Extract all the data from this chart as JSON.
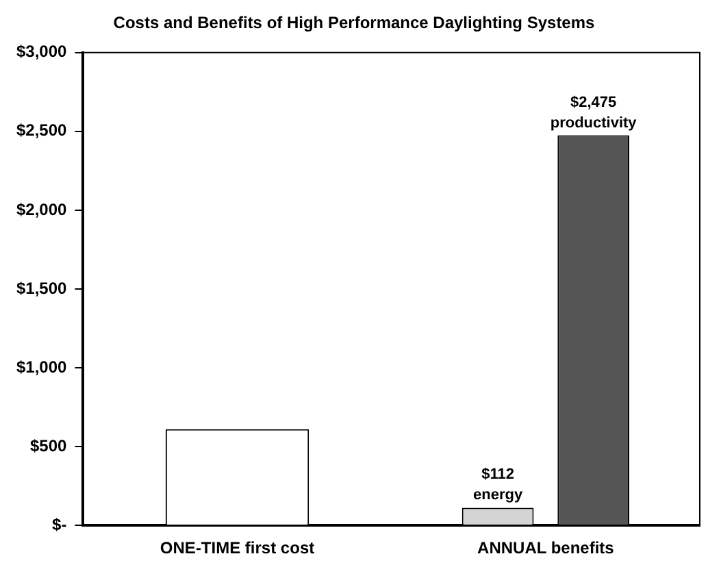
{
  "chart_data": {
    "type": "bar",
    "title": "Costs and Benefits of High Performance Daylighting Systems",
    "categories": [
      "ONE-TIME first cost",
      "ANNUAL benefits"
    ],
    "series": [
      {
        "color": "#ffffff",
        "values": [
          610,
          null
        ]
      },
      {
        "name": "energy",
        "color": "#d4d4d4",
        "values": [
          null,
          112
        ],
        "value_labels": [
          null,
          "$112"
        ]
      },
      {
        "name": "productivity",
        "color": "#555555",
        "values": [
          null,
          2475
        ],
        "value_labels": [
          null,
          "$2,475"
        ]
      }
    ],
    "ylim": [
      0,
      3000
    ],
    "yticks": [
      {
        "value": 0,
        "label": "$-"
      },
      {
        "value": 500,
        "label": "$500"
      },
      {
        "value": 1000,
        "label": "$1,000"
      },
      {
        "value": 1500,
        "label": "$1,500"
      },
      {
        "value": 2000,
        "label": "$2,000"
      },
      {
        "value": 2500,
        "label": "$2,500"
      },
      {
        "value": 3000,
        "label": "$3,000"
      }
    ],
    "grid": false,
    "legend": false
  }
}
